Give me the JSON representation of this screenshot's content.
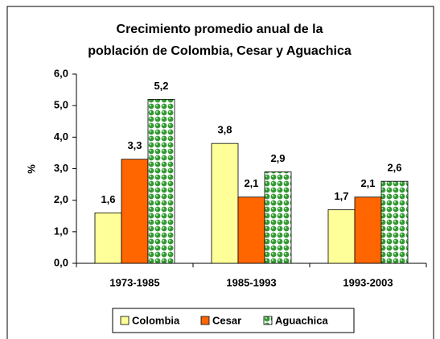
{
  "chart_data": {
    "type": "bar",
    "title": [
      "Crecimiento promedio anual de la",
      "población de Colombia, Cesar y Aguachica"
    ],
    "ylabel": "%",
    "categories": [
      "1973-1985",
      "1985-1993",
      "1993-2003"
    ],
    "series": [
      {
        "name": "Colombia",
        "color": "#ffff99",
        "values": [
          1.6,
          3.8,
          1.7
        ],
        "value_labels": [
          "1,6",
          "3,8",
          "1,7"
        ]
      },
      {
        "name": "Cesar",
        "color": "#ff6600",
        "values": [
          3.3,
          2.1,
          2.1
        ],
        "value_labels": [
          "3,3",
          "2,1",
          "2,1"
        ]
      },
      {
        "name": "Aguachica",
        "color": "#339933",
        "values": [
          5.2,
          2.9,
          2.6
        ],
        "value_labels": [
          "5,2",
          "2,9",
          "2,6"
        ]
      }
    ],
    "ylim": [
      0,
      6
    ],
    "yticks": [
      {
        "value": 0,
        "label": "0,0"
      },
      {
        "value": 1,
        "label": "1,0"
      },
      {
        "value": 2,
        "label": "2,0"
      },
      {
        "value": 3,
        "label": "3,0"
      },
      {
        "value": 4,
        "label": "4,0"
      },
      {
        "value": 5,
        "label": "5,0"
      },
      {
        "value": 6,
        "label": "6,0"
      }
    ],
    "legend": "bottom"
  }
}
